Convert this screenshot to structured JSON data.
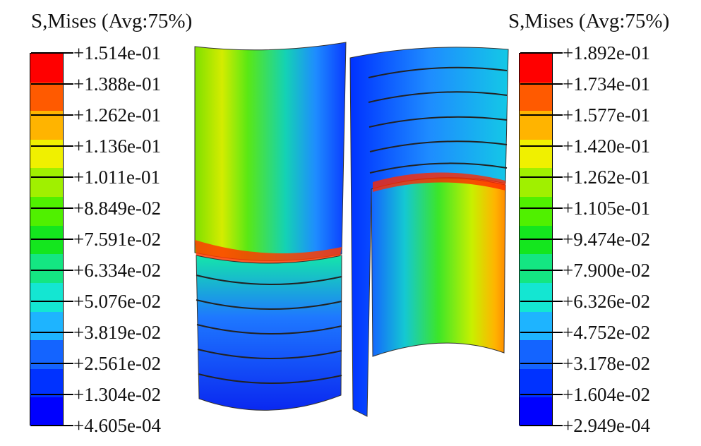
{
  "legends": [
    {
      "title": "S,Mises (Avg:75%)",
      "values": [
        "+1.514e-01",
        "+1.388e-01",
        "+1.262e-01",
        "+1.136e-01",
        "+1.011e-01",
        "+8.849e-02",
        "+7.591e-02",
        "+6.334e-02",
        "+5.076e-02",
        "+3.819e-02",
        "+2.561e-02",
        "+1.304e-02",
        "+4.605e-04"
      ]
    },
    {
      "title": "S,Mises (Avg:75%)",
      "values": [
        "+1.892e-01",
        "+1.734e-01",
        "+1.577e-01",
        "+1.420e-01",
        "+1.262e-01",
        "+1.105e-01",
        "+9.474e-02",
        "+7.900e-02",
        "+6.326e-02",
        "+4.752e-02",
        "+3.178e-02",
        "+1.604e-02",
        "+2.949e-04"
      ]
    }
  ],
  "colors": [
    "#ff0000",
    "#ff5a00",
    "#ffb400",
    "#f0f000",
    "#a0f000",
    "#50f000",
    "#14e61e",
    "#14e682",
    "#14e6d2",
    "#1eb4ff",
    "#1464ff",
    "#0032ff",
    "#0000ff"
  ],
  "model_icons": [
    "left-cylinder-shell",
    "right-half-cylinder-shell"
  ]
}
